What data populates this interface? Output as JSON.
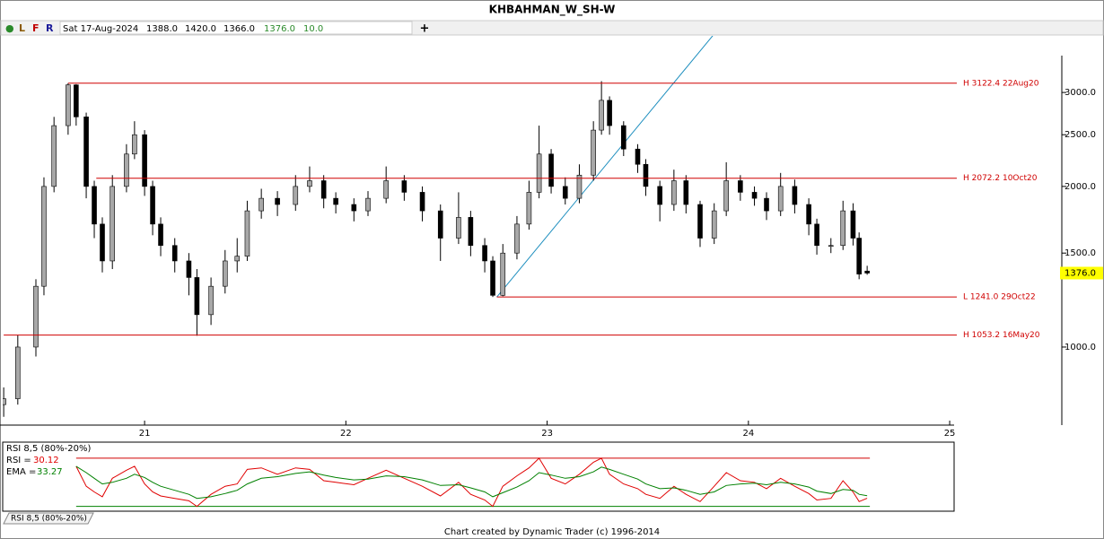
{
  "header": {
    "title": "KHBAHMAN_W_SH-W",
    "indicators": [
      {
        "text": "●",
        "color": "#2a8a2a"
      },
      {
        "text": "L",
        "color": "#8a5a00"
      },
      {
        "text": "F",
        "color": "#c00000"
      },
      {
        "text": "R",
        "color": "#1a1a9a"
      }
    ],
    "date": "Sat 17-Aug-2024",
    "open": "1388.0",
    "high": "1420.0",
    "low": "1366.0",
    "close": "1376.0",
    "volume": "10.0"
  },
  "footer": "Chart created by Dynamic Trader  (c) 1996-2014",
  "chart_data": [
    {
      "type": "candlestick",
      "log_scale": true,
      "up_color": "#a8a8a8",
      "down_color": "#000000",
      "x": [
        2020.3,
        2020.37,
        2020.46,
        2020.5,
        2020.55,
        2020.62,
        2020.66,
        2020.71,
        2020.75,
        2020.79,
        2020.84,
        2020.91,
        2020.95,
        2021.0,
        2021.04,
        2021.08,
        2021.15,
        2021.22,
        2021.26,
        2021.33,
        2021.4,
        2021.46,
        2021.51,
        2021.58,
        2021.66,
        2021.75,
        2021.82,
        2021.89,
        2021.95,
        2022.04,
        2022.11,
        2022.2,
        2022.29,
        2022.38,
        2022.47,
        2022.56,
        2022.62,
        2022.69,
        2022.73,
        2022.78,
        2022.85,
        2022.91,
        2022.96,
        2023.02,
        2023.09,
        2023.16,
        2023.23,
        2023.27,
        2023.31,
        2023.38,
        2023.45,
        2023.49,
        2023.56,
        2023.63,
        2023.69,
        2023.76,
        2023.83,
        2023.89,
        2023.96,
        2024.03,
        2024.09,
        2024.16,
        2024.23,
        2024.3,
        2024.34,
        2024.41,
        2024.47,
        2024.52,
        2024.55,
        2024.59
      ],
      "open": [
        780,
        800,
        1000,
        1300,
        2000,
        2600,
        3100,
        2700,
        2000,
        1700,
        1450,
        2000,
        2300,
        2500,
        2000,
        1700,
        1550,
        1450,
        1350,
        1150,
        1300,
        1450,
        1480,
        1800,
        1900,
        1850,
        2000,
        2050,
        1900,
        1850,
        1800,
        1900,
        2050,
        1950,
        1800,
        1600,
        1750,
        1550,
        1450,
        1250,
        1500,
        1700,
        1950,
        2300,
        2000,
        1900,
        2100,
        2550,
        2900,
        2600,
        2350,
        2200,
        2000,
        1850,
        2050,
        1850,
        1600,
        1800,
        2050,
        1950,
        1900,
        1800,
        2000,
        1850,
        1700,
        1550,
        1550,
        1800,
        1600,
        1388
      ],
      "high": [
        840,
        1053.2,
        1340,
        2080,
        2700,
        3122.4,
        3110,
        2750,
        2050,
        1750,
        2100,
        2400,
        2650,
        2550,
        2050,
        1750,
        1600,
        1500,
        1400,
        1350,
        1520,
        1600,
        1880,
        1980,
        1960,
        2100,
        2180,
        2100,
        1950,
        1900,
        1960,
        2180,
        2100,
        2000,
        1850,
        1950,
        1800,
        1600,
        1480,
        1560,
        1760,
        2050,
        2600,
        2350,
        2080,
        2200,
        2650,
        3150,
        2950,
        2650,
        2400,
        2250,
        2050,
        2150,
        2100,
        1880,
        1860,
        2220,
        2100,
        2000,
        1950,
        2120,
        2060,
        1900,
        1740,
        1600,
        1880,
        1860,
        1640,
        1420
      ],
      "low": [
        740,
        780,
        960,
        1250,
        1950,
        2500,
        2600,
        1900,
        1600,
        1380,
        1400,
        1950,
        2250,
        1920,
        1620,
        1480,
        1380,
        1250,
        1050,
        1100,
        1260,
        1380,
        1450,
        1740,
        1760,
        1800,
        1950,
        1820,
        1780,
        1720,
        1760,
        1860,
        1880,
        1720,
        1450,
        1560,
        1480,
        1380,
        1241,
        1245,
        1460,
        1660,
        1900,
        1940,
        1850,
        1860,
        2050,
        2500,
        2500,
        2280,
        2120,
        1920,
        1720,
        1800,
        1780,
        1540,
        1560,
        1760,
        1880,
        1840,
        1730,
        1760,
        1780,
        1620,
        1490,
        1500,
        1520,
        1550,
        1340,
        1366
      ],
      "close": [
        800,
        1000,
        1300,
        2000,
        2600,
        3100,
        2700,
        2000,
        1700,
        1450,
        2000,
        2300,
        2500,
        2000,
        1700,
        1550,
        1450,
        1350,
        1150,
        1300,
        1450,
        1480,
        1800,
        1900,
        1850,
        2000,
        2050,
        1900,
        1850,
        1800,
        1900,
        2050,
        1950,
        1800,
        1600,
        1750,
        1550,
        1450,
        1250,
        1500,
        1700,
        1950,
        2300,
        2000,
        1900,
        2100,
        2550,
        2900,
        2600,
        2350,
        2200,
        2000,
        1850,
        2050,
        1850,
        1600,
        1800,
        2050,
        1950,
        1900,
        1800,
        2000,
        1850,
        1700,
        1550,
        1550,
        1800,
        1600,
        1370,
        1376
      ],
      "xlim": [
        2020.295,
        2025.022
      ],
      "ylim": [
        714,
        3830
      ],
      "xticks": [
        {
          "value": 2021,
          "label": "21"
        },
        {
          "value": 2022,
          "label": "22"
        },
        {
          "value": 2023,
          "label": "23"
        },
        {
          "value": 2024,
          "label": "24"
        },
        {
          "value": 2025,
          "label": "25"
        }
      ],
      "yticks": [
        {
          "value": 1000,
          "label": "1000.0"
        },
        {
          "value": 1500,
          "label": "1500.0"
        },
        {
          "value": 2000,
          "label": "2000.0"
        },
        {
          "value": 2500,
          "label": "2500.0"
        },
        {
          "value": 3000,
          "label": "3000.0"
        }
      ],
      "last_price": {
        "value": 1376,
        "label": "1376.0"
      },
      "levels": [
        {
          "value": 3122.4,
          "label": "H 3122.4 22Aug20",
          "x": 2020.62
        },
        {
          "value": 2072.2,
          "label": "H 2072.2 10Oct20",
          "x": 2020.76
        },
        {
          "value": 1241,
          "label": "L 1241.0 29Oct22",
          "x": 2022.75
        },
        {
          "value": 1053.2,
          "label": "H 1053.2 16May20",
          "x": 2020.3
        }
      ],
      "level_color": "#d00000",
      "trendline": {
        "x": [
          2022.75,
          2023.83
        ],
        "y": [
          1241,
          3862
        ],
        "color": "#1f8fbf"
      }
    },
    {
      "type": "line",
      "title": "RSI 8,5 (80%-20%)",
      "tab": "RSI 8,5 (80%-20%)",
      "rsi_label": "RSI =",
      "last_rsi": 30.12,
      "ema_label": "EMA =",
      "last_ema": 33.27,
      "ylim": [
        14,
        100
      ],
      "levels": [
        {
          "value": 80,
          "color": "#d00000"
        },
        {
          "value": 20,
          "color": "#008000"
        }
      ],
      "series": [
        {
          "name": "RSI",
          "color": "#e00000",
          "values": [
            null,
            null,
            null,
            null,
            null,
            null,
            70,
            45,
            38,
            32,
            55,
            65,
            70,
            48,
            38,
            33,
            30,
            27,
            20,
            35,
            45,
            48,
            66,
            68,
            60,
            68,
            66,
            52,
            50,
            47,
            55,
            65,
            55,
            45,
            33,
            50,
            35,
            28,
            20,
            45,
            58,
            68,
            80,
            55,
            48,
            60,
            75,
            80,
            60,
            48,
            42,
            35,
            30,
            45,
            35,
            26,
            45,
            62,
            52,
            50,
            42,
            55,
            45,
            36,
            28,
            30,
            52,
            38,
            26,
            30.12
          ]
        },
        {
          "name": "EMA",
          "color": "#008000",
          "values": [
            null,
            null,
            null,
            null,
            null,
            null,
            70,
            62,
            55,
            48,
            50,
            55,
            60,
            56,
            50,
            45,
            40,
            35,
            30,
            32,
            36,
            40,
            48,
            55,
            57,
            61,
            63,
            59,
            56,
            53,
            54,
            58,
            57,
            53,
            46,
            47,
            43,
            38,
            32,
            37,
            44,
            52,
            62,
            59,
            55,
            57,
            63,
            69,
            66,
            60,
            54,
            48,
            42,
            43,
            40,
            35,
            38,
            46,
            48,
            49,
            47,
            50,
            48,
            44,
            39,
            36,
            41,
            40,
            35,
            33.27
          ]
        }
      ]
    }
  ]
}
